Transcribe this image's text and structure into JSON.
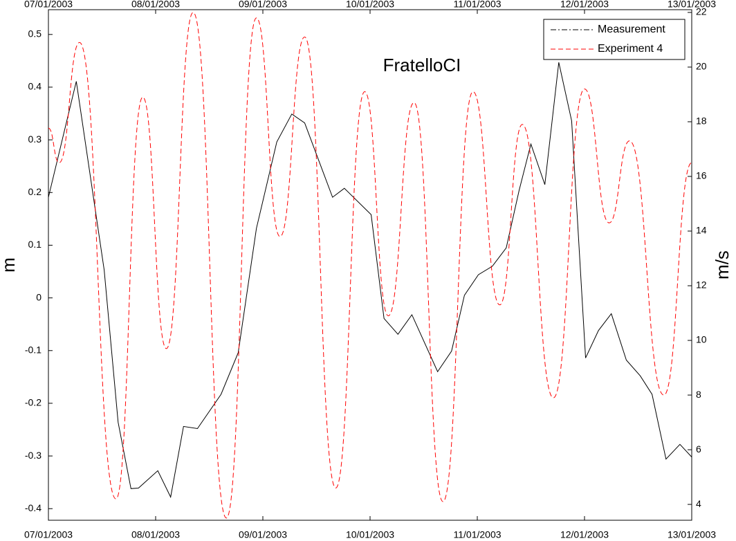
{
  "chart_data": {
    "type": "line",
    "title": "FratelloCI",
    "ylabel": "m",
    "y2label": "m/s",
    "xlim": [
      0,
      6
    ],
    "xticks": [
      {
        "value": 0,
        "label": "07/01/2003"
      },
      {
        "value": 1,
        "label": "08/01/2003"
      },
      {
        "value": 2,
        "label": "09/01/2003"
      },
      {
        "value": 3,
        "label": "10/01/2003"
      },
      {
        "value": 4,
        "label": "11/01/2003"
      },
      {
        "value": 5,
        "label": "12/01/2003"
      },
      {
        "value": 6,
        "label": "13/01/2003"
      }
    ],
    "ylim": [
      -0.422,
      0.547
    ],
    "yticks": [
      -0.4,
      -0.3,
      -0.2,
      -0.1,
      0,
      0.1,
      0.2,
      0.3,
      0.4,
      0.5
    ],
    "y2lim": [
      3.42,
      22.1
    ],
    "y2ticks": [
      4,
      6,
      8,
      10,
      12,
      14,
      16,
      18,
      20,
      22
    ],
    "legend": "upper right",
    "series": [
      {
        "name": "Measurement",
        "color": "#000000",
        "style": "dashdot",
        "axis": "y",
        "x": [
          0,
          0.26,
          0.52,
          0.65,
          0.77,
          0.84,
          1.02,
          1.14,
          1.26,
          1.39,
          1.61,
          1.77,
          1.94,
          2.13,
          2.27,
          2.39,
          2.65,
          2.76,
          3.01,
          3.13,
          3.26,
          3.39,
          3.63,
          3.76,
          3.88,
          4.01,
          4.14,
          4.27,
          4.39,
          4.5,
          4.63,
          4.76,
          4.88,
          5.01,
          5.13,
          5.25,
          5.39,
          5.52,
          5.63,
          5.76,
          5.89,
          6.0
        ],
        "values": [
          0.191,
          0.411,
          0.053,
          -0.236,
          -0.362,
          -0.361,
          -0.328,
          -0.378,
          -0.244,
          -0.248,
          -0.183,
          -0.104,
          0.132,
          0.296,
          0.349,
          0.332,
          0.191,
          0.208,
          0.158,
          -0.039,
          -0.069,
          -0.032,
          -0.14,
          -0.101,
          0.005,
          0.044,
          0.06,
          0.095,
          0.204,
          0.292,
          0.215,
          0.447,
          0.336,
          -0.114,
          -0.062,
          -0.03,
          -0.118,
          -0.148,
          -0.183,
          -0.306,
          -0.278,
          -0.302
        ]
      },
      {
        "name": "Experiment 4",
        "color": "#ff0000",
        "style": "dashed",
        "axis": "y2",
        "x": [
          0,
          0.1,
          0.29,
          0.63,
          0.88,
          1.1,
          1.35,
          1.66,
          1.94,
          2.16,
          2.39,
          2.68,
          2.95,
          3.17,
          3.41,
          3.68,
          3.96,
          4.21,
          4.42,
          4.71,
          5.0,
          5.23,
          5.42,
          5.74,
          6.0
        ],
        "values": [
          17.77,
          16.5,
          20.9,
          4.2,
          18.9,
          9.7,
          22.0,
          3.5,
          21.8,
          13.8,
          21.1,
          4.6,
          19.1,
          10.9,
          18.7,
          4.1,
          19.1,
          11.3,
          17.9,
          7.9,
          19.2,
          14.3,
          17.3,
          8.0,
          16.5
        ]
      }
    ]
  }
}
